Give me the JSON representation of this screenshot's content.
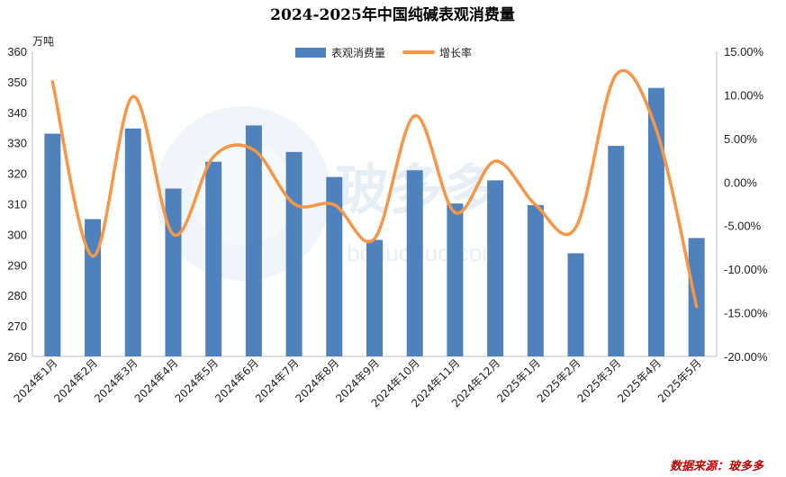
{
  "chart_data": {
    "type": "bar+line",
    "title": "2024-2025年中国纯碱表观消费量",
    "y_unit": "万吨",
    "source": "数据来源：玻多多",
    "watermark": "玻多多",
    "watermark_sub": "boduoduo.com",
    "categories": [
      "2024年1月",
      "2024年2月",
      "2024年3月",
      "2024年4月",
      "2024年5月",
      "2024年6月",
      "2024年7月",
      "2024年8月",
      "2024年9月",
      "2024年10月",
      "2024年11月",
      "2024年12月",
      "2025年1月",
      "2025年2月",
      "2025年3月",
      "2025年4月",
      "2025年5月"
    ],
    "series": [
      {
        "name": "表观消费量",
        "type": "bar",
        "axis": "left",
        "color": "#4f81bd",
        "values": [
          333,
          305,
          334.7,
          315,
          323.8,
          335.7,
          327,
          318.8,
          298.2,
          321,
          310.1,
          317.7,
          309.6,
          293.8,
          329,
          348,
          298.8
        ]
      },
      {
        "name": "增长率",
        "type": "line",
        "axis": "right",
        "color": "#f79646",
        "unit": "%",
        "values": [
          11.5,
          -8.5,
          9.8,
          -6.0,
          2.9,
          3.7,
          -2.5,
          -2.6,
          -6.5,
          7.6,
          -3.5,
          2.4,
          -2.6,
          -5.2,
          12.3,
          6.0,
          -14.3
        ]
      }
    ],
    "y_left": {
      "min": 260,
      "max": 360,
      "step": 10,
      "tick_labels": [
        "260",
        "270",
        "280",
        "290",
        "300",
        "310",
        "320",
        "330",
        "340",
        "350",
        "360"
      ]
    },
    "y_right": {
      "min": -20,
      "max": 15,
      "step": 5,
      "tick_labels": [
        "-20.00%",
        "-15.00%",
        "-10.00%",
        "-5.00%",
        "0.00%",
        "5.00%",
        "10.00%",
        "15.00%"
      ]
    },
    "legend_position": "top-center",
    "grid": false
  }
}
